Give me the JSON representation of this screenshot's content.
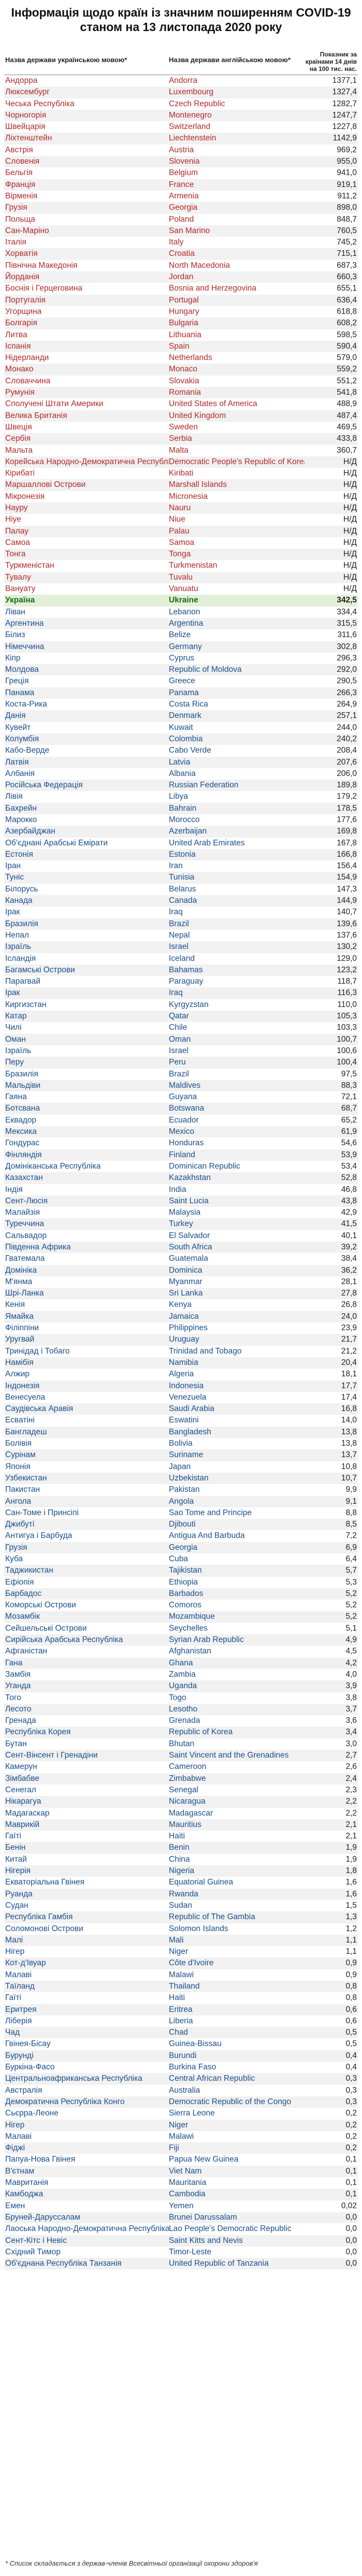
{
  "title": {
    "line1": "Інформація щодо країн із значним поширенням COVID-19",
    "line2": "станом на 13 листопада 2020 року"
  },
  "headers": {
    "uk": "Назва держави українською мовою*",
    "en": "Назва держави англійською мовою*",
    "value": "Показник за країнами 14 днів на 100 тис. нас."
  },
  "rows": [
    {
      "uk": "Андорра",
      "en": "Andorra",
      "v": "1377,1",
      "g": "a"
    },
    {
      "uk": "Люксембург",
      "en": "Luxembourg",
      "v": "1327,4",
      "g": "a"
    },
    {
      "uk": "Чеська Республіка",
      "en": "Czech Republic",
      "v": "1282,7",
      "g": "a"
    },
    {
      "uk": "Чорногорія",
      "en": "Montenegro",
      "v": "1247,7",
      "g": "a"
    },
    {
      "uk": "Швейцарія",
      "en": "Switzerland",
      "v": "1227,8",
      "g": "a"
    },
    {
      "uk": "Ліхтенштейн",
      "en": "Liechtenstein",
      "v": "1142,9",
      "g": "a"
    },
    {
      "uk": "Австрія",
      "en": "Austria",
      "v": "969,2",
      "g": "a"
    },
    {
      "uk": "Словенія",
      "en": "Slovenia",
      "v": "955,0",
      "g": "a"
    },
    {
      "uk": "Бельгія",
      "en": "Belgium",
      "v": "941,0",
      "g": "a"
    },
    {
      "uk": "Франція",
      "en": "France",
      "v": "919,1",
      "g": "a"
    },
    {
      "uk": "Вірменія",
      "en": "Armenia",
      "v": "911,2",
      "g": "a"
    },
    {
      "uk": "Грузія",
      "en": "Georgia",
      "v": "898,0",
      "g": "a"
    },
    {
      "uk": "Польща",
      "en": "Poland",
      "v": "848,7",
      "g": "a"
    },
    {
      "uk": "Сан-Маріно",
      "en": "San Marino",
      "v": "760,5",
      "g": "a"
    },
    {
      "uk": "Італія",
      "en": "Italy",
      "v": "745,2",
      "g": "a"
    },
    {
      "uk": "Хорватія",
      "en": "Croatia",
      "v": "715,1",
      "g": "a"
    },
    {
      "uk": "Північна Македонія",
      "en": "North Macedonia",
      "v": "687,3",
      "g": "a"
    },
    {
      "uk": "Йорданія",
      "en": "Jordan",
      "v": "660,3",
      "g": "a"
    },
    {
      "uk": "Боснія і Герцеговина",
      "en": "Bosnia and Herzegovina",
      "v": "655,1",
      "g": "a"
    },
    {
      "uk": "Португалія",
      "en": "Portugal",
      "v": "636,4",
      "g": "a"
    },
    {
      "uk": "Угорщина",
      "en": "Hungary",
      "v": "618,8",
      "g": "a"
    },
    {
      "uk": "Болгарія",
      "en": "Bulgaria",
      "v": "608,2",
      "g": "a"
    },
    {
      "uk": "Литва",
      "en": "Lithuania",
      "v": "598,5",
      "g": "a"
    },
    {
      "uk": "Іспанія",
      "en": "Spain",
      "v": "590,4",
      "g": "a"
    },
    {
      "uk": "Нідерланди",
      "en": "Netherlands",
      "v": "579,0",
      "g": "a"
    },
    {
      "uk": "Монако",
      "en": "Monaco",
      "v": "559,2",
      "g": "a"
    },
    {
      "uk": "Словаччина",
      "en": "Slovakia",
      "v": "551,2",
      "g": "a"
    },
    {
      "uk": "Румунія",
      "en": "Romania",
      "v": "541,8",
      "g": "a"
    },
    {
      "uk": "Сполучені Штати Америки",
      "en": "United States of America",
      "v": "488,9",
      "g": "a"
    },
    {
      "uk": "Велика Британія",
      "en": "United Kingdom",
      "v": "487,4",
      "g": "a"
    },
    {
      "uk": "Швеція",
      "en": "Sweden",
      "v": "469,5",
      "g": "a"
    },
    {
      "uk": "Сербія",
      "en": "Serbia",
      "v": "433,8",
      "g": "a"
    },
    {
      "uk": "Мальта",
      "en": "Malta",
      "v": "360,7",
      "g": "a"
    },
    {
      "uk": "Корейська Народно-Демократична Республіка",
      "en": "Democratic People's Republic of Korea",
      "v": "Н/Д",
      "g": "a"
    },
    {
      "uk": "Кірибаті",
      "en": "Kiribati",
      "v": "Н/Д",
      "g": "a"
    },
    {
      "uk": "Маршаллові Острови",
      "en": "Marshall Islands",
      "v": "Н/Д",
      "g": "a"
    },
    {
      "uk": "Мікронезія",
      "en": "Micronesia",
      "v": "Н/Д",
      "g": "a"
    },
    {
      "uk": "Науру",
      "en": "Nauru",
      "v": "Н/Д",
      "g": "a"
    },
    {
      "uk": "Ніуе",
      "en": "Niue",
      "v": "Н/Д",
      "g": "a"
    },
    {
      "uk": "Палау",
      "en": "Palau",
      "v": "Н/Д",
      "g": "a"
    },
    {
      "uk": "Самоа",
      "en": "Samoa",
      "v": "Н/Д",
      "g": "a"
    },
    {
      "uk": "Тонга",
      "en": "Tonga",
      "v": "Н/Д",
      "g": "a"
    },
    {
      "uk": "Туркменістан",
      "en": "Turkmenistan",
      "v": "Н/Д",
      "g": "a"
    },
    {
      "uk": "Тувалу",
      "en": "Tuvalu",
      "v": "Н/Д",
      "g": "a"
    },
    {
      "uk": "Вануату",
      "en": "Vanuatu",
      "v": "Н/Д",
      "g": "a"
    },
    {
      "uk": "Україна",
      "en": "Ukraine",
      "v": "342,5",
      "g": "h"
    },
    {
      "uk": "Ліван",
      "en": "Lebanon",
      "v": "334,4",
      "g": "b"
    },
    {
      "uk": "Аргентина",
      "en": "Argentina",
      "v": "315,5",
      "g": "b"
    },
    {
      "uk": "Білиз",
      "en": "Belize",
      "v": "311,6",
      "g": "b"
    },
    {
      "uk": "Німеччина",
      "en": "Germany",
      "v": "302,8",
      "g": "b"
    },
    {
      "uk": "Кіпр",
      "en": "Cyprus",
      "v": "296,3",
      "g": "b"
    },
    {
      "uk": "Молдова",
      "en": "Republic of Moldova",
      "v": "292,0",
      "g": "b"
    },
    {
      "uk": "Греція",
      "en": "Greece",
      "v": "290,5",
      "g": "b"
    },
    {
      "uk": "Панама",
      "en": "Panama",
      "v": "266,3",
      "g": "b"
    },
    {
      "uk": "Коста-Рика",
      "en": "Costa Rica",
      "v": "264,9",
      "g": "b"
    },
    {
      "uk": "Данія",
      "en": "Denmark",
      "v": "257,1",
      "g": "b"
    },
    {
      "uk": "Кувейт",
      "en": "Kuwait",
      "v": "244,0",
      "g": "b"
    },
    {
      "uk": "Колумбія",
      "en": "Colombia",
      "v": "240,2",
      "g": "b"
    },
    {
      "uk": "Кабо-Верде",
      "en": "Cabo Verde",
      "v": "208,4",
      "g": "b"
    },
    {
      "uk": "Латвія",
      "en": "Latvia",
      "v": "207,6",
      "g": "b"
    },
    {
      "uk": "Албанія",
      "en": "Albania",
      "v": "206,0",
      "g": "b"
    },
    {
      "uk": "Російська Федерація",
      "en": "Russian Federation",
      "v": "189,8",
      "g": "b"
    },
    {
      "uk": "Лівія",
      "en": "Libya",
      "v": "179,2",
      "g": "b"
    },
    {
      "uk": "Бахрейн",
      "en": "Bahrain",
      "v": "178,5",
      "g": "b"
    },
    {
      "uk": "Марокко",
      "en": "Morocco",
      "v": "177,6",
      "g": "b"
    },
    {
      "uk": "Азербайджан",
      "en": "Azerbaijan",
      "v": "169,8",
      "g": "b"
    },
    {
      "uk": "Об'єднані Арабські Емірати",
      "en": "United Arab Emirates",
      "v": "167,8",
      "g": "b"
    },
    {
      "uk": "Естонія",
      "en": "Estonia",
      "v": "166,8",
      "g": "b"
    },
    {
      "uk": "Іран",
      "en": "Iran",
      "v": "156,4",
      "g": "b"
    },
    {
      "uk": "Туніс",
      "en": "Tunisia",
      "v": "154,9",
      "g": "b"
    },
    {
      "uk": "Білорусь",
      "en": "Belarus",
      "v": "147,3",
      "g": "b"
    },
    {
      "uk": "Канада",
      "en": "Canada",
      "v": "144,9",
      "g": "b"
    },
    {
      "uk": "Ірак",
      "en": "Iraq",
      "v": "140,7",
      "g": "b"
    },
    {
      "uk": "Бразилія",
      "en": "Brazil",
      "v": "139,6",
      "g": "b"
    },
    {
      "uk": "Непал",
      "en": "Nepal",
      "v": "137,6",
      "g": "b"
    },
    {
      "uk": "Ізраїль",
      "en": "Israel",
      "v": "130,2",
      "g": "b"
    },
    {
      "uk": "Ісландія",
      "en": "Iceland",
      "v": "129,0",
      "g": "b"
    },
    {
      "uk": "Багамські Острови",
      "en": "Bahamas",
      "v": "123,2",
      "g": "b"
    },
    {
      "uk": "Парагвай",
      "en": "Paraguay",
      "v": "118,7",
      "g": "b"
    },
    {
      "uk": "Ірак",
      "en": "Iraq",
      "v": "116,3",
      "g": "b"
    },
    {
      "uk": "Киргизстан",
      "en": "Kyrgyzstan",
      "v": "110,0",
      "g": "b"
    },
    {
      "uk": "Катар",
      "en": "Qatar",
      "v": "105,3",
      "g": "b"
    },
    {
      "uk": "Чилі",
      "en": "Chile",
      "v": "103,3",
      "g": "b"
    },
    {
      "uk": "Оман",
      "en": "Oman",
      "v": "100,7",
      "g": "b"
    },
    {
      "uk": "Ізраїль",
      "en": "Israel",
      "v": "100,6",
      "g": "b"
    },
    {
      "uk": "Перу",
      "en": "Peru",
      "v": "100,4",
      "g": "b"
    },
    {
      "uk": "Бразилія",
      "en": "Brazil",
      "v": "97,5",
      "g": "b"
    },
    {
      "uk": "Мальдіви",
      "en": "Maldives",
      "v": "88,3",
      "g": "b"
    },
    {
      "uk": "Гаяна",
      "en": "Guyana",
      "v": "72,1",
      "g": "b"
    },
    {
      "uk": "Ботсвана",
      "en": "Botswana",
      "v": "68,7",
      "g": "b"
    },
    {
      "uk": "Еквадор",
      "en": "Ecuador",
      "v": "65,2",
      "g": "b"
    },
    {
      "uk": "Мексика",
      "en": "Mexico",
      "v": "61,9",
      "g": "b"
    },
    {
      "uk": "Гондурас",
      "en": "Honduras",
      "v": "54,6",
      "g": "b"
    },
    {
      "uk": "Фінляндія",
      "en": "Finland",
      "v": "53,9",
      "g": "b"
    },
    {
      "uk": "Домініканська Республіка",
      "en": "Dominican Republic",
      "v": "53,4",
      "g": "b"
    },
    {
      "uk": "Казахстан",
      "en": "Kazakhstan",
      "v": "52,8",
      "g": "b"
    },
    {
      "uk": "Індія",
      "en": "India",
      "v": "46,8",
      "g": "b"
    },
    {
      "uk": "Сент-Люсія",
      "en": "Saint Lucia",
      "v": "43,8",
      "g": "b"
    },
    {
      "uk": "Малайзія",
      "en": "Malaysia",
      "v": "42,9",
      "g": "b"
    },
    {
      "uk": "Туреччина",
      "en": "Turkey",
      "v": "41,5",
      "g": "b"
    },
    {
      "uk": "Сальвадор",
      "en": "El Salvador",
      "v": "40,1",
      "g": "b"
    },
    {
      "uk": "Південна Африка",
      "en": "South Africa",
      "v": "39,2",
      "g": "b"
    },
    {
      "uk": "Гватемала",
      "en": "Guatemala",
      "v": "38,4",
      "g": "b"
    },
    {
      "uk": "Домініка",
      "en": "Dominica",
      "v": "36,2",
      "g": "b"
    },
    {
      "uk": "М'янма",
      "en": "Myanmar",
      "v": "28,1",
      "g": "b"
    },
    {
      "uk": "Шрі-Ланка",
      "en": "Sri Lanka",
      "v": "27,8",
      "g": "b"
    },
    {
      "uk": "Кенія",
      "en": "Kenya",
      "v": "26,8",
      "g": "b"
    },
    {
      "uk": "Ямайка",
      "en": "Jamaica",
      "v": "24,0",
      "g": "b"
    },
    {
      "uk": "Філіппіни",
      "en": "Philippines",
      "v": "23,9",
      "g": "b"
    },
    {
      "uk": "Уругвай",
      "en": "Uruguay",
      "v": "21,7",
      "g": "b"
    },
    {
      "uk": "Тринідад і Тобаго",
      "en": "Trinidad and Tobago",
      "v": "21,2",
      "g": "b"
    },
    {
      "uk": "Намібія",
      "en": "Namibia",
      "v": "20,4",
      "g": "b"
    },
    {
      "uk": "Алжир",
      "en": "Algeria",
      "v": "18,1",
      "g": "b"
    },
    {
      "uk": "Індонезія",
      "en": "Indonesia",
      "v": "17,7",
      "g": "b"
    },
    {
      "uk": "Венесуела",
      "en": "Venezuela",
      "v": "17,4",
      "g": "b"
    },
    {
      "uk": "Саудівська Аравія",
      "en": "Saudi Arabia",
      "v": "16,8",
      "g": "b"
    },
    {
      "uk": "Есватіні",
      "en": "Eswatini",
      "v": "14,0",
      "g": "b"
    },
    {
      "uk": "Бангладеш",
      "en": "Bangladesh",
      "v": "13,8",
      "g": "b"
    },
    {
      "uk": "Болівія",
      "en": "Bolivia",
      "v": "13,8",
      "g": "b"
    },
    {
      "uk": "Сурінам",
      "en": "Suriname",
      "v": "13,7",
      "g": "b"
    },
    {
      "uk": "Японія",
      "en": "Japan",
      "v": "10,8",
      "g": "b"
    },
    {
      "uk": "Узбекистан",
      "en": "Uzbekistan",
      "v": "10,7",
      "g": "b"
    },
    {
      "uk": "Пакистан",
      "en": "Pakistan",
      "v": "9,9",
      "g": "b"
    },
    {
      "uk": "Ангола",
      "en": "Angola",
      "v": "9,1",
      "g": "b"
    },
    {
      "uk": "Сан-Томе і Принсіпі",
      "en": "Sao Tome and Principe",
      "v": "8,8",
      "g": "b"
    },
    {
      "uk": "Джибуті",
      "en": "Djibouti",
      "v": "8,5",
      "g": "b"
    },
    {
      "uk": "Антигуа і Барбуда",
      "en": "Antigua And Barbuda",
      "v": "7,2",
      "g": "b"
    },
    {
      "uk": "Грузія",
      "en": "Georgia",
      "v": "6,9",
      "g": "b"
    },
    {
      "uk": "Куба",
      "en": "Cuba",
      "v": "6,4",
      "g": "b"
    },
    {
      "uk": "Таджикистан",
      "en": "Tajikistan",
      "v": "5,7",
      "g": "b"
    },
    {
      "uk": "Ефіопія",
      "en": "Ethiopia",
      "v": "5,3",
      "g": "b"
    },
    {
      "uk": "Барбадос",
      "en": "Barbados",
      "v": "5,2",
      "g": "b"
    },
    {
      "uk": "Коморські Острови",
      "en": "Comoros",
      "v": "5,2",
      "g": "b"
    },
    {
      "uk": "Мозамбік",
      "en": "Mozambique",
      "v": "5,2",
      "g": "b"
    },
    {
      "uk": "Сейшельські Острови",
      "en": "Seychelles",
      "v": "5,1",
      "g": "b"
    },
    {
      "uk": "Сирійська Арабська Республіка",
      "en": "Syrian Arab Republic",
      "v": "4,9",
      "g": "b"
    },
    {
      "uk": "Афганістан",
      "en": "Afghanistan",
      "v": "4,5",
      "g": "b"
    },
    {
      "uk": "Гана",
      "en": "Ghana",
      "v": "4,2",
      "g": "b"
    },
    {
      "uk": "Замбія",
      "en": "Zambia",
      "v": "4,0",
      "g": "b"
    },
    {
      "uk": "Уганда",
      "en": "Uganda",
      "v": "3,9",
      "g": "b"
    },
    {
      "uk": "Того",
      "en": "Togo",
      "v": "3,8",
      "g": "b"
    },
    {
      "uk": "Лесото",
      "en": "Lesotho",
      "v": "3,7",
      "g": "b"
    },
    {
      "uk": "Гренада",
      "en": "Grenada",
      "v": "3,6",
      "g": "b"
    },
    {
      "uk": "Республіка Корея",
      "en": "Republic of Korea",
      "v": "3,4",
      "g": "b"
    },
    {
      "uk": "Бутан",
      "en": "Bhutan",
      "v": "3,0",
      "g": "b"
    },
    {
      "uk": "Сент-Вінсент і Гренадіни",
      "en": "Saint Vincent and the Grenadines",
      "v": "2,7",
      "g": "b"
    },
    {
      "uk": "Камерун",
      "en": "Cameroon",
      "v": "2,6",
      "g": "b"
    },
    {
      "uk": "Зімбабве",
      "en": "Zimbabwe",
      "v": "2,4",
      "g": "b"
    },
    {
      "uk": "Сенегал",
      "en": "Senegal",
      "v": "2,3",
      "g": "b"
    },
    {
      "uk": "Нікарагуа",
      "en": "Nicaragua",
      "v": "2,2",
      "g": "b"
    },
    {
      "uk": "Мадагаскар",
      "en": "Madagascar",
      "v": "2,2",
      "g": "b"
    },
    {
      "uk": "Маврикій",
      "en": "Mauritius",
      "v": "2,1",
      "g": "b"
    },
    {
      "uk": "Гаїті",
      "en": "Haiti",
      "v": "2,1",
      "g": "b"
    },
    {
      "uk": "Бенін",
      "en": "Benin",
      "v": "1,9",
      "g": "b"
    },
    {
      "uk": "Китай",
      "en": "China",
      "v": "1,9",
      "g": "b"
    },
    {
      "uk": "Нігерія",
      "en": "Nigeria",
      "v": "1,8",
      "g": "b"
    },
    {
      "uk": "Екваторіальна Гвінея",
      "en": "Equatorial Guinea",
      "v": "1,6",
      "g": "b"
    },
    {
      "uk": "Руанда",
      "en": "Rwanda",
      "v": "1,6",
      "g": "b"
    },
    {
      "uk": "Судан",
      "en": "Sudan",
      "v": "1,5",
      "g": "b"
    },
    {
      "uk": "Республіка Гамбія",
      "en": "Republic of The Gambia",
      "v": "1,3",
      "g": "b"
    },
    {
      "uk": "Соломонові Острови",
      "en": "Solomon Islands",
      "v": "1,2",
      "g": "b"
    },
    {
      "uk": "Малі",
      "en": "Mali",
      "v": "1,1",
      "g": "b"
    },
    {
      "uk": "Нігер",
      "en": "Niger",
      "v": "1,1",
      "g": "b"
    },
    {
      "uk": "Кот-д'Івуар",
      "en": "Côte d'Ivoire",
      "v": "0,9",
      "g": "b"
    },
    {
      "uk": "Малаві",
      "en": "Malawi",
      "v": "0,9",
      "g": "b"
    },
    {
      "uk": "Таїланд",
      "en": "Thailand",
      "v": "0,8",
      "g": "b"
    },
    {
      "uk": "Гаїті",
      "en": "Haiti",
      "v": "0,8",
      "g": "b"
    },
    {
      "uk": "Еритрея",
      "en": "Eritrea",
      "v": "0,6",
      "g": "b"
    },
    {
      "uk": "Ліберія",
      "en": "Liberia",
      "v": "0,6",
      "g": "b"
    },
    {
      "uk": "Чад",
      "en": "Chad",
      "v": "0,5",
      "g": "b"
    },
    {
      "uk": "Гвінея-Бісау",
      "en": "Guinea-Bissau",
      "v": "0,5",
      "g": "b"
    },
    {
      "uk": "Бурунді",
      "en": "Burundi",
      "v": "0,4",
      "g": "b"
    },
    {
      "uk": "Буркіна-Фасо",
      "en": "Burkina Faso",
      "v": "0,4",
      "g": "b"
    },
    {
      "uk": "Центральноафриканська Республіка",
      "en": "Central African Republic",
      "v": "0,3",
      "g": "b"
    },
    {
      "uk": "Австралія",
      "en": "Australia",
      "v": "0,3",
      "g": "b"
    },
    {
      "uk": "Демократична Республіка Конго",
      "en": "Democratic Republic of the Congo",
      "v": "0,3",
      "g": "b"
    },
    {
      "uk": "Сьєрра-Леоне",
      "en": "Sierra Leone",
      "v": "0,2",
      "g": "b"
    },
    {
      "uk": "Нігер",
      "en": "Niger",
      "v": "0,2",
      "g": "b"
    },
    {
      "uk": "Малаві",
      "en": "Malawi",
      "v": "0,2",
      "g": "b"
    },
    {
      "uk": "Фіджі",
      "en": "Fiji",
      "v": "0,2",
      "g": "b"
    },
    {
      "uk": "Папуа-Нова Гвінея",
      "en": "Papua New Guinea",
      "v": "0,1",
      "g": "b"
    },
    {
      "uk": "В'єтнам",
      "en": "Viet Nam",
      "v": "0,1",
      "g": "b"
    },
    {
      "uk": "Мавританія",
      "en": "Mauritania",
      "v": "0,1",
      "g": "b"
    },
    {
      "uk": "Камбоджа",
      "en": "Cambodia",
      "v": "0,1",
      "g": "b"
    },
    {
      "uk": "Емен",
      "en": "Yemen",
      "v": "0,02",
      "g": "b"
    },
    {
      "uk": "Бруней-Даруссалам",
      "en": "Brunei Darussalam",
      "v": "0,0",
      "g": "b"
    },
    {
      "uk": "Лаоська Народно-Демократична Республіка",
      "en": "Lao People's Democratic Republic",
      "v": "0,0",
      "g": "b"
    },
    {
      "uk": "Сент-Кітс і Невіс",
      "en": "Saint Kitts and Nevis",
      "v": "0,0",
      "g": "b"
    },
    {
      "uk": "Східний Тимор",
      "en": "Timor-Leste",
      "v": "0,0",
      "g": "b"
    },
    {
      "uk": "Об'єднана Республіка Танзанія",
      "en": "United Republic of Tanzania",
      "v": "0,0",
      "g": "b"
    }
  ],
  "footnote": "* Список складається з держав-членів Всесвітньої організації охорони здоров'я"
}
